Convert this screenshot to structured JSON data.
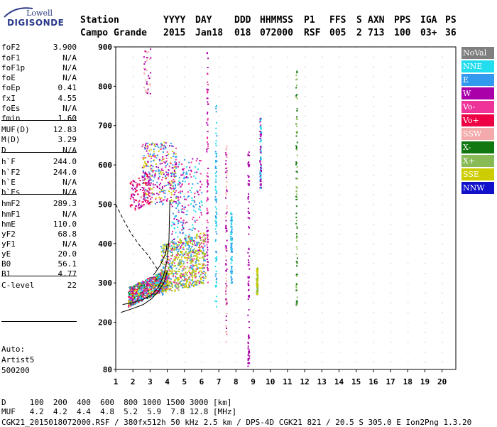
{
  "logo": {
    "line1": "Lowell",
    "line2": "DIGISONDE"
  },
  "header": {
    "row1": [
      "Station",
      "YYYY",
      "DAY",
      "DDD",
      "HHMMSS",
      "P1",
      "FFS",
      "S",
      "AXN",
      "PPS",
      "IGA",
      "PS"
    ],
    "row2": [
      "Campo Grande",
      "2015",
      "Jan18",
      "018",
      "072000",
      "RSF",
      "005",
      "2",
      "713",
      "100",
      "03+",
      "36"
    ]
  },
  "params": [
    {
      "name": "foF2",
      "value": "3.900"
    },
    {
      "name": "foF1",
      "value": "N/A"
    },
    {
      "name": "foF1p",
      "value": "N/A"
    },
    {
      "name": "foE",
      "value": "N/A"
    },
    {
      "name": "foEp",
      "value": "0.41"
    },
    {
      "name": "fxI",
      "value": "4.55"
    },
    {
      "name": "foEs",
      "value": "N/A"
    },
    {
      "name": "fmin",
      "value": "1.60"
    },
    {
      "name": "MUF(D)",
      "value": "12.83"
    },
    {
      "name": "M(D)",
      "value": "3.29"
    },
    {
      "name": "D",
      "value": "N/A"
    },
    {
      "name": "h`F",
      "value": "244.0"
    },
    {
      "name": "h`F2",
      "value": "244.0"
    },
    {
      "name": "h`E",
      "value": "N/A"
    },
    {
      "name": "h`Es",
      "value": "N/A"
    },
    {
      "name": "hmF2",
      "value": "289.3"
    },
    {
      "name": "hmF1",
      "value": "N/A"
    },
    {
      "name": "hmE",
      "value": "110.0"
    },
    {
      "name": "yF2",
      "value": "68.8"
    },
    {
      "name": "yF1",
      "value": "N/A"
    },
    {
      "name": "yE",
      "value": "20.0"
    },
    {
      "name": "B0",
      "value": "56.1"
    },
    {
      "name": "B1",
      "value": "4.77"
    },
    {
      "name": "C-level",
      "value": "22"
    }
  ],
  "autoscaler": {
    "line1": "Auto:",
    "line2": "Artist5",
    "line3": "500200"
  },
  "legend": [
    {
      "label": "NoVal",
      "color": "#7f7f7f"
    },
    {
      "label": "NNE",
      "color": "#22ddee"
    },
    {
      "label": "E",
      "color": "#3399ee"
    },
    {
      "label": "W",
      "color": "#aa00aa"
    },
    {
      "label": "Vo-",
      "color": "#ee3399"
    },
    {
      "label": "Vo+",
      "color": "#ee0044"
    },
    {
      "label": "SSW",
      "color": "#f4aaaa"
    },
    {
      "label": "X-",
      "color": "#117711"
    },
    {
      "label": "X+",
      "color": "#88bb55"
    },
    {
      "label": "SSE",
      "color": "#cccc00"
    },
    {
      "label": "NNW",
      "color": "#1111cc"
    }
  ],
  "yaxis": {
    "ticks": [
      "900",
      "800",
      "700",
      "600",
      "500",
      "400",
      "300",
      "200",
      "80"
    ]
  },
  "xaxis": {
    "ticks": [
      "1",
      "2",
      "3",
      "4",
      "5",
      "6",
      "7",
      "8",
      "9",
      "10",
      "11",
      "12",
      "13",
      "14",
      "15",
      "16",
      "17",
      "18",
      "19",
      "20"
    ]
  },
  "bottom": {
    "d_row": "D     100  200  400  600  800 1000 1500 3000 [km]",
    "muf_row": "MUF   4.2  4.2  4.4  4.8  5.2  5.9  7.8 12.8 [MHz]",
    "info": "CGK21_2015018072000.RSF / 380fx512h 50 kHz 2.5 km / DPS-4D CGK21 821 / 20.5 S 305.0 E Ion2Png 1.3.20"
  }
}
